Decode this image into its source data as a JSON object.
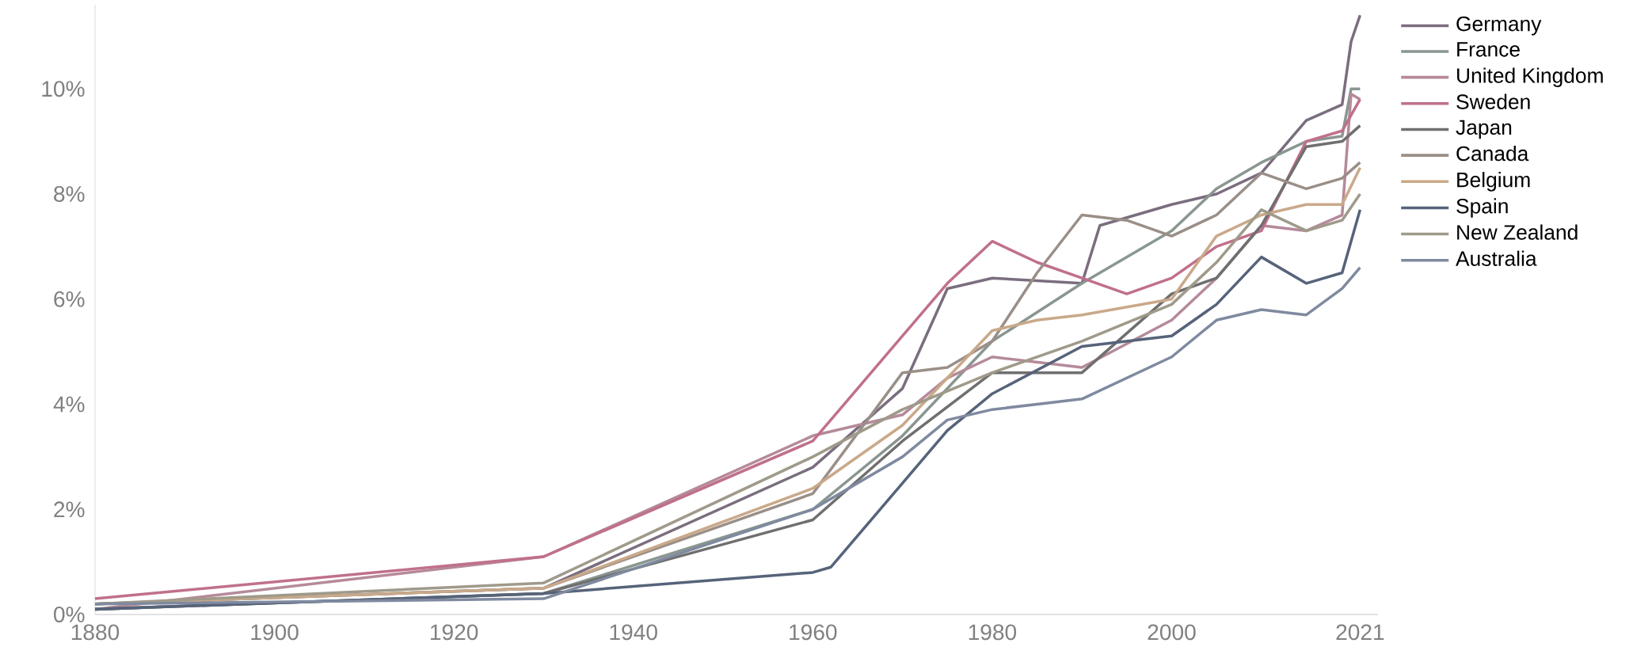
{
  "chart_data": {
    "type": "line",
    "xlim": [
      1880,
      2023
    ],
    "ylim": [
      0,
      11.6
    ],
    "xticks": [
      1880,
      1900,
      1920,
      1940,
      1960,
      1980,
      2000,
      2021
    ],
    "yticks": [
      {
        "value": 0,
        "label": "0%"
      },
      {
        "value": 2,
        "label": "2%"
      },
      {
        "value": 4,
        "label": "4%"
      },
      {
        "value": 6,
        "label": "6%"
      },
      {
        "value": 8,
        "label": "8%"
      },
      {
        "value": 10,
        "label": "10%"
      }
    ],
    "grid": false,
    "legend": "top right",
    "marker": "none",
    "line_style": "solid",
    "series": [
      {
        "name": "Germany",
        "color": "#7a6e7e",
        "x": [
          1880,
          1930,
          1960,
          1970,
          1975,
          1980,
          1990,
          1992,
          2000,
          2005,
          2010,
          2015,
          2019,
          2020,
          2021
        ],
        "values": [
          0.2,
          0.5,
          2.8,
          4.3,
          6.2,
          6.4,
          6.3,
          7.4,
          7.8,
          8.0,
          8.4,
          9.4,
          9.7,
          10.9,
          11.4
        ]
      },
      {
        "name": "France",
        "color": "#8a9690",
        "x": [
          1880,
          1930,
          1960,
          1970,
          1980,
          1990,
          2000,
          2005,
          2010,
          2015,
          2019,
          2020,
          2021
        ],
        "values": [
          0.1,
          0.4,
          2.0,
          3.4,
          5.2,
          6.3,
          7.3,
          8.1,
          8.6,
          9.0,
          9.1,
          10.0,
          10.0
        ]
      },
      {
        "name": "United Kingdom",
        "color": "#b58a9a",
        "x": [
          1880,
          1930,
          1960,
          1970,
          1975,
          1980,
          1990,
          2000,
          2005,
          2010,
          2015,
          2019,
          2020,
          2021
        ],
        "values": [
          0.1,
          1.1,
          3.4,
          3.8,
          4.5,
          4.9,
          4.7,
          5.6,
          6.4,
          7.4,
          7.3,
          7.6,
          9.9,
          9.8
        ]
      },
      {
        "name": "Sweden",
        "color": "#c0708c",
        "x": [
          1880,
          1930,
          1960,
          1970,
          1975,
          1980,
          1985,
          1990,
          1995,
          2000,
          2005,
          2010,
          2015,
          2019,
          2021
        ],
        "values": [
          0.3,
          1.1,
          3.3,
          5.3,
          6.3,
          7.1,
          6.7,
          6.4,
          6.1,
          6.4,
          7.0,
          7.3,
          9.0,
          9.2,
          9.8
        ]
      },
      {
        "name": "Japan",
        "color": "#6f6f6f",
        "x": [
          1880,
          1930,
          1960,
          1970,
          1980,
          1990,
          2000,
          2005,
          2010,
          2015,
          2019,
          2021
        ],
        "values": [
          0.1,
          0.4,
          1.8,
          3.3,
          4.6,
          4.6,
          6.1,
          6.4,
          7.4,
          8.9,
          9.0,
          9.3
        ]
      },
      {
        "name": "Canada",
        "color": "#9a8f88",
        "x": [
          1880,
          1930,
          1960,
          1970,
          1975,
          1980,
          1985,
          1990,
          1995,
          2000,
          2005,
          2010,
          2015,
          2019,
          2021
        ],
        "values": [
          0.2,
          0.5,
          2.3,
          4.6,
          4.7,
          5.2,
          6.5,
          7.6,
          7.5,
          7.2,
          7.6,
          8.4,
          8.1,
          8.3,
          8.6
        ]
      },
      {
        "name": "Belgium",
        "color": "#c9a98a",
        "x": [
          1880,
          1930,
          1960,
          1970,
          1980,
          1985,
          1990,
          2000,
          2005,
          2010,
          2015,
          2019,
          2021
        ],
        "values": [
          0.2,
          0.5,
          2.4,
          3.6,
          5.4,
          5.6,
          5.7,
          6.0,
          7.2,
          7.6,
          7.8,
          7.8,
          8.5
        ]
      },
      {
        "name": "Spain",
        "color": "#56637a",
        "x": [
          1880,
          1930,
          1960,
          1962,
          1970,
          1975,
          1980,
          1990,
          2000,
          2005,
          2010,
          2015,
          2019,
          2021
        ],
        "values": [
          0.1,
          0.4,
          0.8,
          0.9,
          2.5,
          3.5,
          4.2,
          5.1,
          5.3,
          5.9,
          6.8,
          6.3,
          6.5,
          7.7
        ]
      },
      {
        "name": "New Zealand",
        "color": "#9f9a8a",
        "x": [
          1880,
          1930,
          1960,
          1970,
          1980,
          1990,
          2000,
          2005,
          2010,
          2015,
          2019,
          2021
        ],
        "values": [
          0.2,
          0.6,
          3.0,
          3.9,
          4.6,
          5.2,
          5.9,
          6.7,
          7.7,
          7.3,
          7.5,
          8.0
        ]
      },
      {
        "name": "Australia",
        "color": "#7f8aa0",
        "x": [
          1880,
          1930,
          1960,
          1970,
          1975,
          1980,
          1990,
          2000,
          2005,
          2010,
          2015,
          2019,
          2021
        ],
        "values": [
          0.2,
          0.3,
          2.0,
          3.0,
          3.7,
          3.9,
          4.1,
          4.9,
          5.6,
          5.8,
          5.7,
          6.2,
          6.6
        ]
      }
    ]
  }
}
